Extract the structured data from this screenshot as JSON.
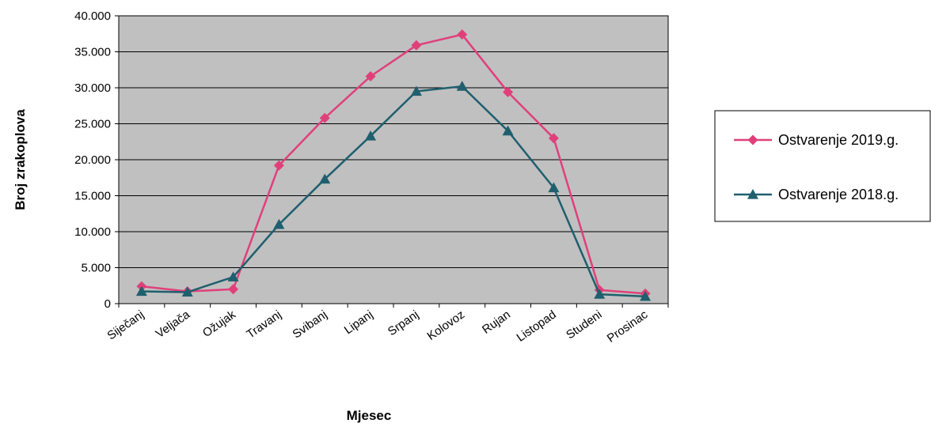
{
  "chart_data": {
    "type": "line",
    "xlabel": "Mjesec",
    "ylabel": "Broj zrakoplova",
    "ylim": [
      0,
      40000
    ],
    "yticks": [
      "0",
      "5.000",
      "10.000",
      "15.000",
      "20.000",
      "25.000",
      "30.000",
      "35.000",
      "40.000"
    ],
    "categories": [
      "Siječanj",
      "Veljača",
      "Ožujak",
      "Travanj",
      "Svibanj",
      "Lipanj",
      "Srpanj",
      "Kolovoz",
      "Rujan",
      "Listopad",
      "Studeni",
      "Prosinac"
    ],
    "grid": "horizontal",
    "plot_background": "#c0c0c0",
    "legend_position": "right",
    "series": [
      {
        "name": "Ostvarenje 2019.g.",
        "color": "#e0407a",
        "marker": "diamond",
        "values": [
          2400,
          1700,
          2000,
          19200,
          25800,
          31600,
          35900,
          37400,
          29400,
          23000,
          1900,
          1400
        ]
      },
      {
        "name": "Ostvarenje 2018.g.",
        "color": "#1f5f6e",
        "marker": "triangle",
        "values": [
          1700,
          1600,
          3700,
          11000,
          17300,
          23300,
          29500,
          30200,
          24000,
          16100,
          1300,
          1000
        ]
      }
    ]
  }
}
